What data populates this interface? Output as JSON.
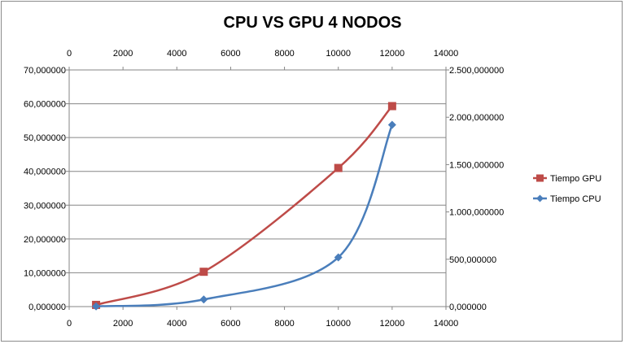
{
  "chart_data": {
    "type": "line",
    "title": "CPU VS GPU 4 NODOS",
    "x": [
      1000,
      5000,
      10000,
      12000
    ],
    "x_ticks": [
      "0",
      "2000",
      "4000",
      "6000",
      "8000",
      "10000",
      "12000",
      "14000"
    ],
    "xlim": [
      0,
      14000
    ],
    "y_left_ticks": [
      "0,000000",
      "10,000000",
      "20,000000",
      "30,000000",
      "40,000000",
      "50,000000",
      "60,000000",
      "70,000000"
    ],
    "ylim_left": [
      0,
      70
    ],
    "y_right_ticks": [
      "0,000000",
      "500,000000",
      "1.000,000000",
      "1.500,000000",
      "2.000,000000",
      "2.500,000000"
    ],
    "ylim_right": [
      0,
      2500
    ],
    "grid": true,
    "legend_position": "right",
    "series": [
      {
        "name": "Tiempo GPU",
        "axis": "left",
        "color": "#be4b48",
        "marker": "square",
        "values": [
          0.5,
          10.3,
          41.0,
          59.3
        ]
      },
      {
        "name": "Tiempo CPU",
        "axis": "right",
        "color": "#4a7ebb",
        "marker": "diamond",
        "values": [
          2,
          75,
          520,
          1920
        ]
      }
    ]
  }
}
